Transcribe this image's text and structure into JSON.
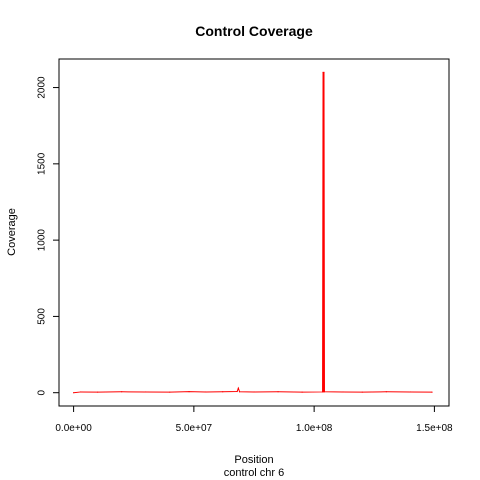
{
  "chart_data": {
    "type": "line",
    "title": "Control Coverage",
    "xlabel": "Position",
    "subtitle": "control chr 6",
    "ylabel": "Coverage",
    "xlim": [
      0,
      150000000
    ],
    "ylim": [
      0,
      2100
    ],
    "x_ticks": [
      0,
      50000000,
      100000000,
      150000000
    ],
    "x_tick_labels": [
      "0.0e+00",
      "5.0e+07",
      "1.0e+08",
      "1.5e+08"
    ],
    "y_ticks": [
      0,
      500,
      1000,
      1500,
      2000
    ],
    "y_tick_labels": [
      "0",
      "500",
      "1000",
      "1500",
      "2000"
    ],
    "grid": false,
    "legend": "none",
    "series": [
      {
        "color": "#ff0000",
        "x": [
          0,
          3000000,
          10000000,
          20000000,
          30000000,
          40000000,
          48000000,
          55000000,
          62000000,
          68000000,
          68500000,
          69000000,
          75000000,
          85000000,
          95000000,
          103500000,
          103700000,
          103900000,
          104100000,
          104300000,
          112000000,
          120000000,
          130000000,
          140000000,
          149000000
        ],
        "y": [
          0,
          5,
          4,
          6,
          5,
          4,
          7,
          5,
          6,
          8,
          30,
          6,
          5,
          6,
          4,
          5,
          2100,
          5,
          2100,
          6,
          5,
          4,
          6,
          5,
          4
        ]
      }
    ]
  }
}
